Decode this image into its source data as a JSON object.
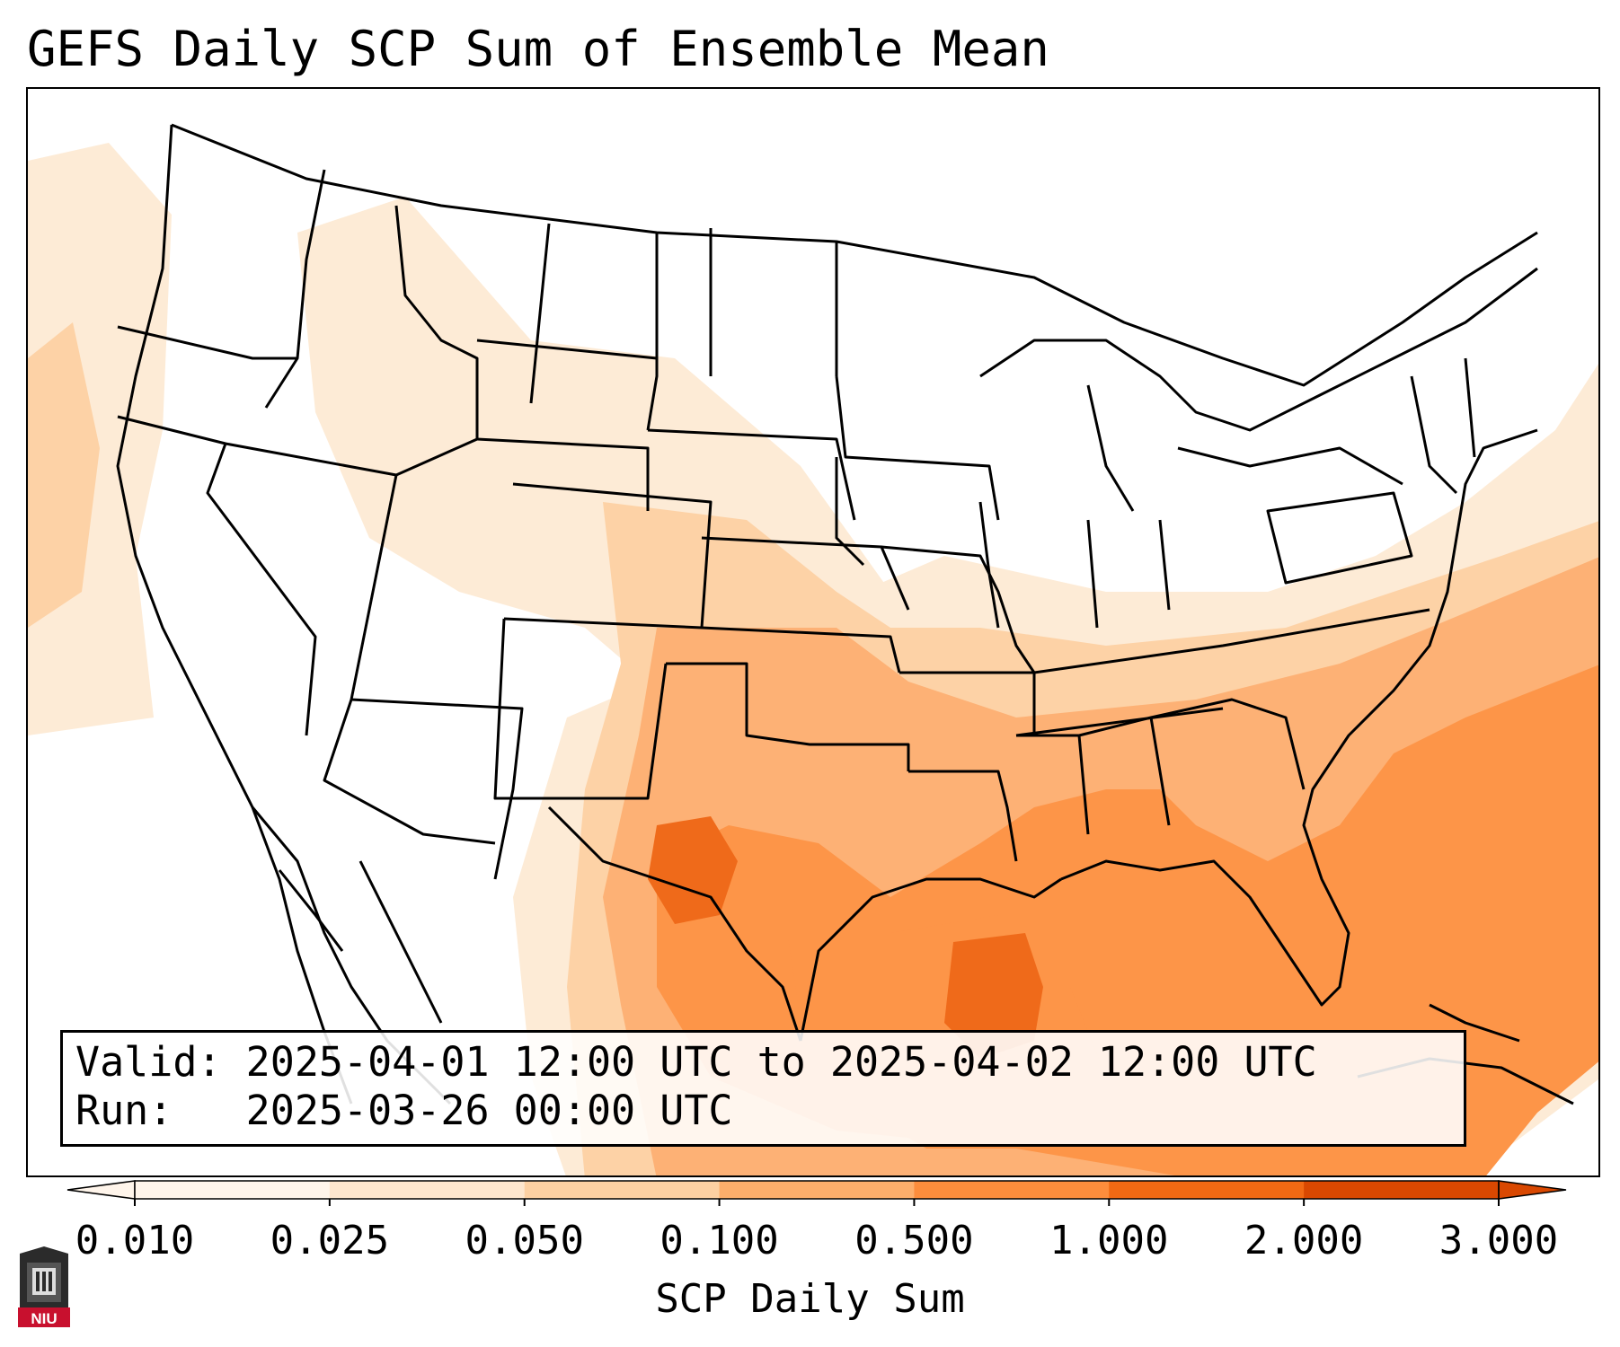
{
  "title": "GEFS Daily SCP Sum of Ensemble Mean",
  "info_box": {
    "valid_label": "Valid:",
    "valid_value": "2025-04-01 12:00 UTC to 2025-04-02 12:00 UTC",
    "run_label": "Run:",
    "run_value": "2025-03-26 00:00 UTC"
  },
  "colorbar": {
    "label": "SCP Daily Sum",
    "ticks": [
      "0.010",
      "0.025",
      "0.050",
      "0.100",
      "0.500",
      "1.000",
      "2.000",
      "3.000"
    ],
    "colors": [
      "#fff5eb",
      "#fee6ce",
      "#fdd0a2",
      "#fdae6b",
      "#fd8d3c",
      "#f16913",
      "#d94801"
    ],
    "extend": "both"
  },
  "logo": {
    "text": "NIU",
    "icon": "university-tower-icon"
  },
  "map": {
    "region": "CONUS",
    "field": "SCP daily sum shading"
  }
}
